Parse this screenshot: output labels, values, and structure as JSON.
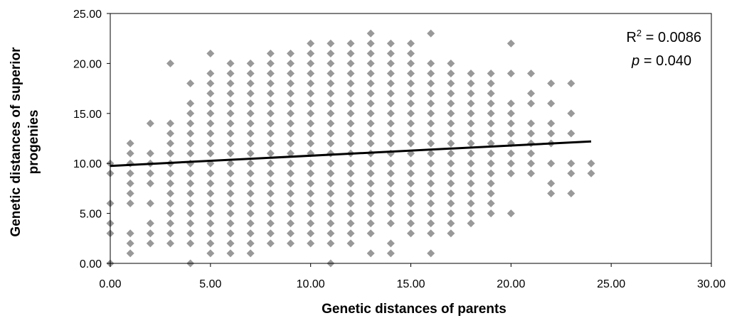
{
  "chart_data": {
    "type": "scatter",
    "xlabel": "Genetic distances of parents",
    "ylabel": [
      "Genetic distances of superior",
      "progenies"
    ],
    "xlim": [
      0,
      30
    ],
    "ylim": [
      0,
      25
    ],
    "x_ticks": [
      "0.00",
      "5.00",
      "10.00",
      "15.00",
      "20.00",
      "25.00",
      "30.00"
    ],
    "y_ticks": [
      "0.00",
      "5.00",
      "10.00",
      "15.00",
      "20.00",
      "25.00"
    ],
    "grid": false,
    "marker": "diamond",
    "marker_color": "#999999",
    "annotation": {
      "r2_label": "R",
      "r2_sup": "2",
      "r2_value": " = 0.0086",
      "p_label": "p",
      "p_value": " = 0.040"
    },
    "trendline": {
      "x": [
        0,
        24
      ],
      "y": [
        9.75,
        12.2
      ],
      "color": "#000000"
    },
    "columns": [
      {
        "x": 0,
        "y": [
          0,
          3,
          4,
          6,
          9,
          10
        ]
      },
      {
        "x": 1,
        "y": [
          1,
          2,
          3,
          6,
          7,
          8,
          9,
          10,
          11,
          12
        ]
      },
      {
        "x": 2,
        "y": [
          2,
          3,
          4,
          6,
          8,
          9,
          10,
          11,
          14
        ]
      },
      {
        "x": 3,
        "y": [
          2,
          3,
          4,
          5,
          6,
          7,
          8,
          9,
          10,
          11,
          12,
          13,
          14,
          20
        ]
      },
      {
        "x": 4,
        "y": [
          0,
          2,
          3,
          4,
          5,
          6,
          7,
          8,
          9,
          10,
          11,
          12,
          13,
          14,
          15,
          16,
          18
        ]
      },
      {
        "x": 5,
        "y": [
          1,
          2,
          3,
          4,
          5,
          6,
          7,
          8,
          9,
          10,
          11,
          12,
          13,
          14,
          15,
          16,
          17,
          18,
          19,
          21
        ]
      },
      {
        "x": 6,
        "y": [
          1,
          2,
          3,
          4,
          5,
          6,
          7,
          8,
          9,
          10,
          11,
          12,
          13,
          14,
          15,
          16,
          17,
          18,
          19,
          20
        ]
      },
      {
        "x": 7,
        "y": [
          1,
          2,
          3,
          4,
          5,
          6,
          7,
          8,
          9,
          10,
          11,
          12,
          13,
          14,
          15,
          16,
          17,
          18,
          19,
          20
        ]
      },
      {
        "x": 8,
        "y": [
          2,
          3,
          4,
          5,
          6,
          7,
          8,
          9,
          10,
          11,
          12,
          13,
          14,
          15,
          16,
          17,
          18,
          19,
          20,
          21
        ]
      },
      {
        "x": 9,
        "y": [
          2,
          3,
          4,
          5,
          6,
          7,
          8,
          9,
          10,
          11,
          12,
          13,
          14,
          15,
          16,
          17,
          18,
          19,
          20,
          21
        ]
      },
      {
        "x": 10,
        "y": [
          2,
          3,
          4,
          5,
          6,
          7,
          8,
          9,
          10,
          11,
          12,
          13,
          14,
          15,
          16,
          17,
          18,
          19,
          20,
          21,
          22
        ]
      },
      {
        "x": 11,
        "y": [
          0,
          2,
          3,
          4,
          5,
          6,
          7,
          8,
          9,
          10,
          11,
          12,
          13,
          14,
          15,
          16,
          17,
          18,
          19,
          20,
          21,
          22
        ]
      },
      {
        "x": 12,
        "y": [
          2,
          3,
          4,
          5,
          6,
          7,
          8,
          9,
          10,
          11,
          12,
          13,
          14,
          15,
          16,
          17,
          18,
          19,
          20,
          21,
          22
        ]
      },
      {
        "x": 13,
        "y": [
          1,
          3,
          4,
          5,
          6,
          7,
          8,
          9,
          10,
          11,
          12,
          13,
          14,
          15,
          16,
          17,
          18,
          19,
          20,
          21,
          22,
          23
        ]
      },
      {
        "x": 14,
        "y": [
          1,
          2,
          4,
          5,
          6,
          7,
          8,
          9,
          10,
          11,
          12,
          13,
          14,
          15,
          16,
          17,
          18,
          19,
          20,
          21,
          22
        ]
      },
      {
        "x": 15,
        "y": [
          3,
          4,
          5,
          6,
          7,
          8,
          9,
          10,
          11,
          12,
          13,
          14,
          15,
          16,
          17,
          18,
          19,
          20,
          21,
          22
        ]
      },
      {
        "x": 16,
        "y": [
          1,
          3,
          4,
          5,
          6,
          7,
          8,
          9,
          10,
          11,
          12,
          13,
          14,
          15,
          16,
          17,
          18,
          19,
          20,
          23
        ]
      },
      {
        "x": 17,
        "y": [
          3,
          4,
          5,
          6,
          7,
          8,
          9,
          10,
          11,
          12,
          13,
          14,
          15,
          16,
          17,
          18,
          19,
          20
        ]
      },
      {
        "x": 18,
        "y": [
          4,
          5,
          6,
          7,
          8,
          9,
          10,
          11,
          12,
          13,
          14,
          15,
          16,
          17,
          18,
          19
        ]
      },
      {
        "x": 19,
        "y": [
          5,
          6,
          7,
          8,
          9,
          10,
          11,
          12,
          13,
          14,
          15,
          16,
          17,
          18,
          19
        ]
      },
      {
        "x": 20,
        "y": [
          5,
          9,
          10,
          11,
          12,
          13,
          14,
          15,
          16,
          19,
          22
        ]
      },
      {
        "x": 21,
        "y": [
          9,
          10,
          11,
          12,
          13,
          14,
          16,
          17,
          19
        ]
      },
      {
        "x": 22,
        "y": [
          7,
          8,
          10,
          12,
          13,
          14,
          16,
          18
        ]
      },
      {
        "x": 23,
        "y": [
          7,
          9,
          10,
          13,
          15,
          18
        ]
      },
      {
        "x": 24,
        "y": [
          9,
          10
        ]
      }
    ]
  }
}
